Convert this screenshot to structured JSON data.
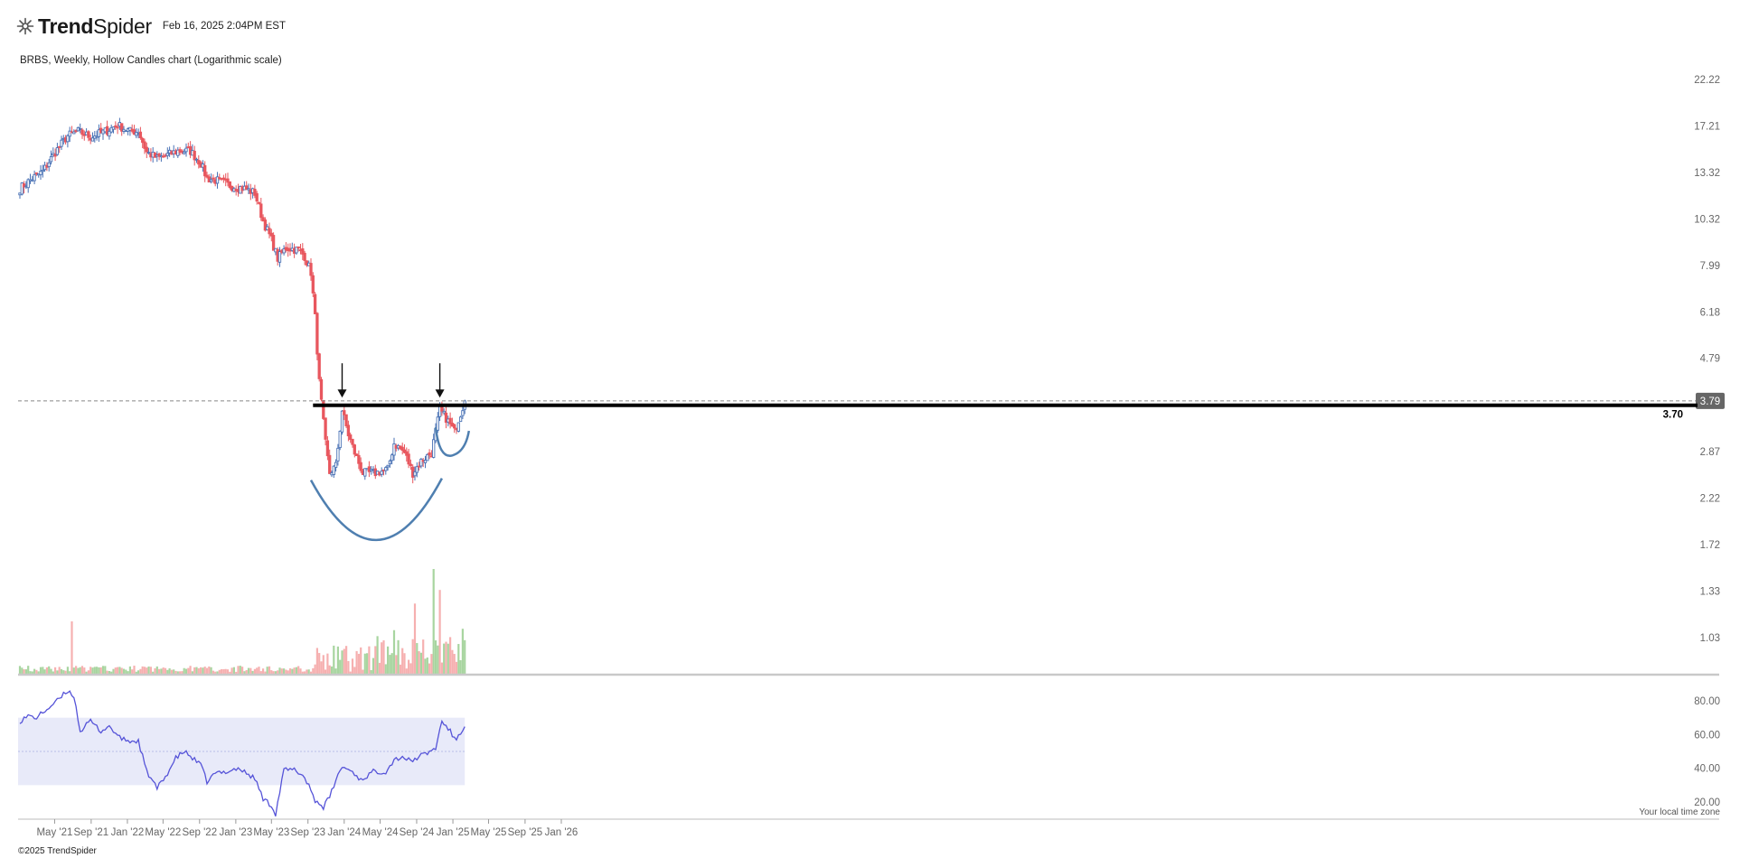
{
  "header": {
    "brand_bold": "Trend",
    "brand_light": "Spider",
    "timestamp": "Feb 16, 2025 2:04PM EST",
    "subtitle": "BRBS, Weekly, Hollow Candles chart (Logarithmic scale)"
  },
  "footer": {
    "copyright": "©2025 TrendSpider",
    "timezone": "Your local time zone"
  },
  "icons": {
    "logo": "trendspider-logo-icon"
  },
  "colors": {
    "up": "#4a72b5",
    "down": "#e8575e",
    "vol_up": "#a8d5a0",
    "vol_down": "#f6b0b0",
    "rsi": "#5553d8",
    "rsi_band": "#e8eaf9",
    "level": "#000000",
    "curve": "#4f7fb0"
  },
  "chart_data": {
    "type": "candlestick",
    "symbol": "BRBS",
    "interval": "Weekly",
    "scale": "log",
    "y_ticks": [
      "22.22",
      "17.21",
      "13.32",
      "10.32",
      "7.99",
      "6.18",
      "4.79",
      "3.79",
      "2.87",
      "2.22",
      "1.72",
      "1.33",
      "1.03"
    ],
    "x_ticks": [
      "May '21",
      "Sep '21",
      "Jan '22",
      "May '22",
      "Sep '22",
      "Jan '23",
      "May '23",
      "Sep '23",
      "Jan '24",
      "May '24",
      "Sep '24",
      "Jan '25",
      "May '25",
      "Sep '25",
      "Jan '26"
    ],
    "last_price": "3.79",
    "level": {
      "value": 3.7,
      "label": "3.70"
    },
    "price_path": [
      [
        "2021-01-04",
        12.2
      ],
      [
        "2021-02-15",
        12.9
      ],
      [
        "2021-03-22",
        13.4
      ],
      [
        "2021-05-03",
        14.9
      ],
      [
        "2021-06-14",
        16.3
      ],
      [
        "2021-07-19",
        16.7
      ],
      [
        "2021-08-30",
        16.2
      ],
      [
        "2021-10-18",
        16.7
      ],
      [
        "2021-11-29",
        17.3
      ],
      [
        "2022-01-10",
        16.7
      ],
      [
        "2022-02-07",
        16.7
      ],
      [
        "2022-03-07",
        14.9
      ],
      [
        "2022-04-11",
        14.4
      ],
      [
        "2022-05-09",
        14.6
      ],
      [
        "2022-06-20",
        15.0
      ],
      [
        "2022-08-01",
        15.0
      ],
      [
        "2022-09-05",
        14.0
      ],
      [
        "2022-09-26",
        12.9
      ],
      [
        "2022-11-07",
        12.7
      ],
      [
        "2022-12-12",
        12.4
      ],
      [
        "2023-01-30",
        12.2
      ],
      [
        "2023-03-06",
        11.9
      ],
      [
        "2023-04-03",
        10.2
      ],
      [
        "2023-05-01",
        9.2
      ],
      [
        "2023-05-22",
        8.3
      ],
      [
        "2023-06-19",
        8.8
      ],
      [
        "2023-07-31",
        8.7
      ],
      [
        "2023-08-21",
        8.4
      ],
      [
        "2023-09-11",
        7.7
      ],
      [
        "2023-09-25",
        6.0
      ],
      [
        "2023-10-09",
        4.2
      ],
      [
        "2023-10-30",
        3.0
      ],
      [
        "2023-11-13",
        2.55
      ],
      [
        "2023-12-04",
        2.65
      ],
      [
        "2023-12-25",
        3.6
      ],
      [
        "2024-01-15",
        3.15
      ],
      [
        "2024-02-05",
        2.85
      ],
      [
        "2024-03-04",
        2.55
      ],
      [
        "2024-04-15",
        2.55
      ],
      [
        "2024-05-27",
        2.6
      ],
      [
        "2024-06-17",
        3.0
      ],
      [
        "2024-07-22",
        2.85
      ],
      [
        "2024-08-19",
        2.55
      ],
      [
        "2024-09-16",
        2.72
      ],
      [
        "2024-10-21",
        2.85
      ],
      [
        "2024-11-18",
        3.6
      ],
      [
        "2024-12-09",
        3.45
      ],
      [
        "2025-01-06",
        3.2
      ],
      [
        "2025-02-10",
        3.79
      ]
    ],
    "volume": {
      "y_axis": "none",
      "notable_bars": [
        {
          "date": "2021-06-28",
          "direction": "down",
          "relative_height": 0.5
        },
        {
          "date": "2024-05-06",
          "direction": "down",
          "relative_height": 0.3
        },
        {
          "date": "2024-08-26",
          "direction": "down",
          "relative_height": 0.67
        },
        {
          "date": "2024-10-28",
          "direction": "up",
          "relative_height": 1.0
        },
        {
          "date": "2024-11-18",
          "direction": "down",
          "relative_height": 0.8
        }
      ]
    },
    "rsi": {
      "y_ticks": [
        "80.00",
        "60.00",
        "40.00",
        "20.00"
      ],
      "band": [
        30,
        70
      ],
      "midline": 50,
      "values": [
        [
          "2021-01-04",
          68
        ],
        [
          "2021-02-01",
          71
        ],
        [
          "2021-03-01",
          70
        ],
        [
          "2021-04-05",
          75
        ],
        [
          "2021-05-10",
          80
        ],
        [
          "2021-06-14",
          86
        ],
        [
          "2021-07-05",
          83
        ],
        [
          "2021-07-26",
          62
        ],
        [
          "2021-08-30",
          68
        ],
        [
          "2021-10-04",
          62
        ],
        [
          "2021-11-01",
          65
        ],
        [
          "2021-12-06",
          58
        ],
        [
          "2022-01-10",
          56
        ],
        [
          "2022-02-07",
          56
        ],
        [
          "2022-03-07",
          38
        ],
        [
          "2022-04-11",
          28
        ],
        [
          "2022-05-09",
          35
        ],
        [
          "2022-06-13",
          46
        ],
        [
          "2022-07-11",
          50
        ],
        [
          "2022-08-08",
          46
        ],
        [
          "2022-09-05",
          42
        ],
        [
          "2022-09-26",
          32
        ],
        [
          "2022-10-24",
          37
        ],
        [
          "2022-11-28",
          38
        ],
        [
          "2023-01-09",
          40
        ],
        [
          "2023-02-06",
          37
        ],
        [
          "2023-03-06",
          34
        ],
        [
          "2023-04-03",
          22
        ],
        [
          "2023-05-01",
          18
        ],
        [
          "2023-05-15",
          13
        ],
        [
          "2023-06-12",
          39
        ],
        [
          "2023-07-17",
          39
        ],
        [
          "2023-08-14",
          36
        ],
        [
          "2023-09-04",
          30
        ],
        [
          "2023-09-25",
          21
        ],
        [
          "2023-10-23",
          17
        ],
        [
          "2023-11-13",
          23
        ],
        [
          "2023-12-04",
          33
        ],
        [
          "2023-12-25",
          41
        ],
        [
          "2024-01-29",
          38
        ],
        [
          "2024-02-26",
          33
        ],
        [
          "2024-04-08",
          38
        ],
        [
          "2024-05-20",
          38
        ],
        [
          "2024-06-17",
          45
        ],
        [
          "2024-07-15",
          47
        ],
        [
          "2024-08-12",
          44
        ],
        [
          "2024-09-09",
          47
        ],
        [
          "2024-10-07",
          49
        ],
        [
          "2024-11-04",
          52
        ],
        [
          "2024-11-25",
          68
        ],
        [
          "2024-12-23",
          62
        ],
        [
          "2025-01-06",
          57
        ],
        [
          "2025-01-27",
          60
        ],
        [
          "2025-02-10",
          66
        ]
      ]
    }
  }
}
